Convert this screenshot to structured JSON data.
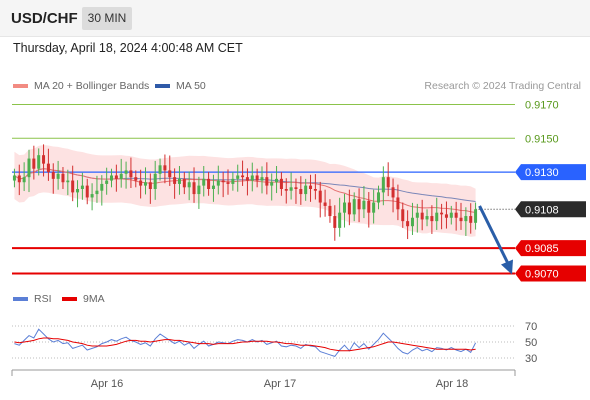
{
  "header": {
    "symbol": "USD/CHF",
    "timeframe": "30 MIN",
    "datetime": "Thursday, April 18, 2024 4:00:48 AM CET"
  },
  "colors": {
    "bull": "#4caf50",
    "bear": "#d32f2f",
    "resistance": "#8bc34a",
    "pivot": "#2962ff",
    "support": "#e60000",
    "ma50": "#7a86b8",
    "ma20": "#e57373",
    "bands_fill": "#fde2e2",
    "rsi": "#5b7fd6",
    "rsi_ma": "#e60000",
    "arrow": "#2a5ea8"
  },
  "chart_data": [
    {
      "type": "candlestick",
      "legend": [
        {
          "label": "MA 20 + Bollinger Bands",
          "color": "#f28b82"
        },
        {
          "label": "MA 50",
          "color": "#2f5aa8"
        }
      ],
      "copyright": "Research © 2024 Trading Central",
      "x_ticks": [
        "Apr 16",
        "Apr 17",
        "Apr 18"
      ],
      "ylim": [
        0.9065,
        0.9175
      ],
      "levels": [
        {
          "value": 0.917,
          "label": "0.9170",
          "kind": "resistance"
        },
        {
          "value": 0.915,
          "label": "0.9150",
          "kind": "resistance"
        },
        {
          "value": 0.913,
          "label": "0.9130",
          "kind": "pivot"
        },
        {
          "value": 0.9108,
          "label": "0.9108",
          "kind": "last"
        },
        {
          "value": 0.9085,
          "label": "0.9085",
          "kind": "support"
        },
        {
          "value": 0.907,
          "label": "0.9070",
          "kind": "support"
        }
      ],
      "projection": {
        "from": 0.911,
        "to": 0.907
      },
      "close": [
        0.9128,
        0.9124,
        0.9127,
        0.9138,
        0.9132,
        0.914,
        0.9135,
        0.913,
        0.9126,
        0.9129,
        0.9124,
        0.9125,
        0.9118,
        0.912,
        0.9122,
        0.9115,
        0.9117,
        0.9119,
        0.9123,
        0.9125,
        0.9128,
        0.9126,
        0.9129,
        0.9131,
        0.9127,
        0.9125,
        0.9122,
        0.9124,
        0.912,
        0.9129,
        0.9134,
        0.9131,
        0.9127,
        0.9123,
        0.9126,
        0.9121,
        0.9124,
        0.9117,
        0.9122,
        0.9126,
        0.912,
        0.9122,
        0.9125,
        0.9124,
        0.9123,
        0.9126,
        0.9128,
        0.9127,
        0.9125,
        0.9128,
        0.9125,
        0.9127,
        0.9122,
        0.9124,
        0.9126,
        0.912,
        0.9119,
        0.9121,
        0.912,
        0.9117,
        0.9122,
        0.912,
        0.9119,
        0.9112,
        0.911,
        0.9104,
        0.9097,
        0.9106,
        0.9112,
        0.9105,
        0.9114,
        0.9108,
        0.9113,
        0.9106,
        0.9112,
        0.9118,
        0.9127,
        0.9121,
        0.9115,
        0.9108,
        0.9101,
        0.9098,
        0.9103,
        0.9106,
        0.9102,
        0.9104,
        0.9101,
        0.9106,
        0.9105,
        0.9103,
        0.9106,
        0.9103,
        0.9101,
        0.9104,
        0.91,
        0.9108
      ]
    },
    {
      "type": "line",
      "legend": [
        {
          "label": "RSI",
          "color": "#5b7fd6"
        },
        {
          "label": "9MA",
          "color": "#e60000"
        }
      ],
      "ylim": [
        25,
        80
      ],
      "y_ticks": [
        "70",
        "50",
        "30"
      ],
      "series": [
        {
          "name": "RSI",
          "values": [
            48,
            46,
            52,
            58,
            55,
            66,
            60,
            54,
            50,
            52,
            48,
            49,
            42,
            44,
            46,
            40,
            42,
            44,
            48,
            50,
            53,
            51,
            54,
            56,
            52,
            50,
            47,
            49,
            45,
            54,
            60,
            56,
            52,
            48,
            51,
            46,
            49,
            42,
            47,
            51,
            45,
            47,
            50,
            49,
            48,
            51,
            53,
            52,
            50,
            53,
            50,
            52,
            47,
            49,
            51,
            45,
            44,
            46,
            45,
            42,
            47,
            45,
            44,
            38,
            36,
            34,
            32,
            40,
            46,
            39,
            49,
            43,
            48,
            41,
            47,
            53,
            61,
            55,
            49,
            42,
            37,
            35,
            40,
            43,
            39,
            41,
            38,
            43,
            42,
            40,
            43,
            40,
            38,
            41,
            37,
            49
          ]
        },
        {
          "name": "9MA",
          "values": [
            50,
            49,
            50,
            51,
            52,
            54,
            55,
            55,
            54,
            54,
            53,
            52,
            50,
            49,
            48,
            46,
            45,
            45,
            45,
            45,
            46,
            47,
            49,
            51,
            52,
            52,
            51,
            51,
            50,
            51,
            52,
            53,
            53,
            52,
            52,
            51,
            50,
            49,
            48,
            48,
            48,
            47,
            48,
            48,
            48,
            48,
            49,
            50,
            50,
            51,
            51,
            51,
            51,
            50,
            50,
            49,
            48,
            48,
            47,
            46,
            46,
            46,
            45,
            44,
            43,
            41,
            40,
            39,
            39,
            39,
            40,
            41,
            42,
            43,
            44,
            46,
            48,
            50,
            50,
            49,
            48,
            47,
            46,
            45,
            44,
            43,
            42,
            41,
            41,
            41,
            41,
            41,
            41,
            41,
            40,
            41
          ]
        }
      ]
    }
  ]
}
